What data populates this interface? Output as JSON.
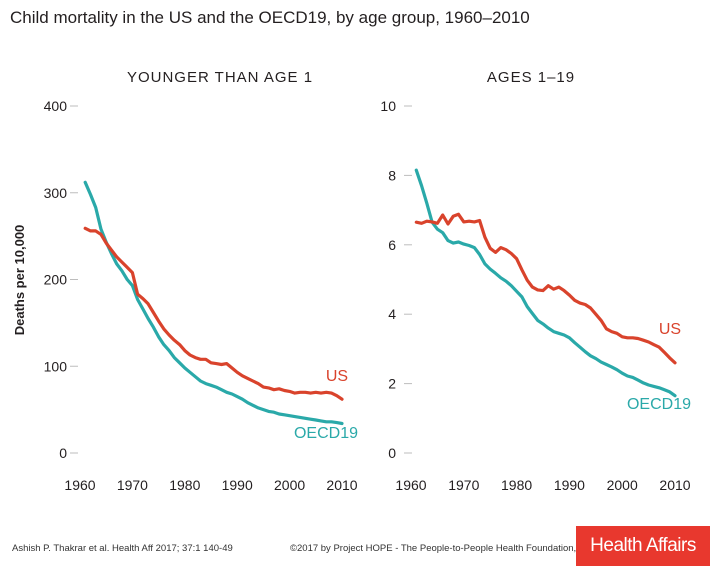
{
  "title": "Child mortality in the US and the OECD19, by age group, 1960–2010",
  "footer": {
    "citation": "Ashish P. Thakrar et al. Health Aff 2017; 37:1 140-49",
    "copyright": "©2017 by Project HOPE - The People-to-People Health Foundation, Inc.",
    "logo_text": "Health Affairs"
  },
  "colors": {
    "us": "#d9432c",
    "oecd19": "#2aa9a9",
    "axis": "#bdbdbd"
  },
  "chart_data": [
    {
      "type": "line",
      "title": "YOUNGER THAN AGE 1",
      "ylabel": "Deaths per 10,000",
      "xlabel": "",
      "xlim": [
        1960,
        2010
      ],
      "ylim": [
        0,
        400
      ],
      "xticks": [
        1960,
        1970,
        1980,
        1990,
        2000,
        2010
      ],
      "yticks": [
        0,
        100,
        200,
        300,
        400
      ],
      "series": [
        {
          "name": "US",
          "x": [
            1961,
            1962,
            1963,
            1964,
            1965,
            1966,
            1967,
            1968,
            1969,
            1970,
            1971,
            1972,
            1973,
            1974,
            1975,
            1976,
            1977,
            1978,
            1979,
            1980,
            1981,
            1982,
            1983,
            1984,
            1985,
            1986,
            1987,
            1988,
            1989,
            1990,
            1991,
            1992,
            1993,
            1994,
            1995,
            1996,
            1997,
            1998,
            1999,
            2000,
            2001,
            2002,
            2003,
            2004,
            2005,
            2006,
            2007,
            2008,
            2009,
            2010
          ],
          "y": [
            259,
            256,
            256,
            252,
            242,
            234,
            226,
            220,
            214,
            208,
            183,
            178,
            172,
            162,
            152,
            143,
            136,
            130,
            125,
            118,
            113,
            110,
            108,
            108,
            104,
            103,
            102,
            103,
            98,
            93,
            89,
            86,
            83,
            80,
            76,
            75,
            73,
            74,
            72,
            71,
            69,
            70,
            70,
            69,
            70,
            69,
            70,
            69,
            66,
            62
          ]
        },
        {
          "name": "OECD19",
          "x": [
            1961,
            1962,
            1963,
            1964,
            1965,
            1966,
            1967,
            1968,
            1969,
            1970,
            1971,
            1972,
            1973,
            1974,
            1975,
            1976,
            1977,
            1978,
            1979,
            1980,
            1981,
            1982,
            1983,
            1984,
            1985,
            1986,
            1987,
            1988,
            1989,
            1990,
            1991,
            1992,
            1993,
            1994,
            1995,
            1996,
            1997,
            1998,
            1999,
            2000,
            2001,
            2002,
            2003,
            2004,
            2005,
            2006,
            2007,
            2008,
            2009,
            2010
          ],
          "y": [
            312,
            298,
            283,
            258,
            243,
            230,
            218,
            210,
            200,
            193,
            177,
            166,
            155,
            145,
            134,
            125,
            118,
            110,
            104,
            98,
            93,
            88,
            83,
            80,
            78,
            76,
            73,
            70,
            68,
            65,
            62,
            58,
            55,
            52,
            50,
            48,
            47,
            45,
            44,
            43,
            42,
            41,
            40,
            39,
            38,
            37,
            36,
            36,
            35,
            34
          ]
        }
      ]
    },
    {
      "type": "line",
      "title": "AGES 1–19",
      "ylabel": "",
      "xlabel": "",
      "xlim": [
        1960,
        2010
      ],
      "ylim": [
        0,
        10
      ],
      "xticks": [
        1960,
        1970,
        1980,
        1990,
        2000,
        2010
      ],
      "yticks": [
        0,
        2,
        4,
        6,
        8,
        10
      ],
      "series": [
        {
          "name": "US",
          "x": [
            1961,
            1962,
            1963,
            1964,
            1965,
            1966,
            1967,
            1968,
            1969,
            1970,
            1971,
            1972,
            1973,
            1974,
            1975,
            1976,
            1977,
            1978,
            1979,
            1980,
            1981,
            1982,
            1983,
            1984,
            1985,
            1986,
            1987,
            1988,
            1989,
            1990,
            1991,
            1992,
            1993,
            1994,
            1995,
            1996,
            1997,
            1998,
            1999,
            2000,
            2001,
            2002,
            2003,
            2004,
            2005,
            2006,
            2007,
            2008,
            2009,
            2010
          ],
          "y": [
            6.65,
            6.62,
            6.68,
            6.66,
            6.62,
            6.86,
            6.6,
            6.82,
            6.88,
            6.66,
            6.68,
            6.66,
            6.7,
            6.22,
            5.9,
            5.78,
            5.92,
            5.86,
            5.75,
            5.6,
            5.28,
            4.98,
            4.78,
            4.7,
            4.68,
            4.82,
            4.72,
            4.78,
            4.68,
            4.55,
            4.4,
            4.32,
            4.28,
            4.18,
            4.0,
            3.82,
            3.58,
            3.5,
            3.45,
            3.35,
            3.32,
            3.32,
            3.3,
            3.25,
            3.2,
            3.12,
            3.05,
            2.9,
            2.74,
            2.6
          ]
        },
        {
          "name": "OECD19",
          "x": [
            1961,
            1962,
            1963,
            1964,
            1965,
            1966,
            1967,
            1968,
            1969,
            1970,
            1971,
            1972,
            1973,
            1974,
            1975,
            1976,
            1977,
            1978,
            1979,
            1980,
            1981,
            1982,
            1983,
            1984,
            1985,
            1986,
            1987,
            1988,
            1989,
            1990,
            1991,
            1992,
            1993,
            1994,
            1995,
            1996,
            1997,
            1998,
            1999,
            2000,
            2001,
            2002,
            2003,
            2004,
            2005,
            2006,
            2007,
            2008,
            2009,
            2010
          ],
          "y": [
            8.15,
            7.7,
            7.2,
            6.65,
            6.45,
            6.35,
            6.12,
            6.05,
            6.08,
            6.02,
            5.98,
            5.92,
            5.72,
            5.45,
            5.3,
            5.18,
            5.05,
            4.95,
            4.82,
            4.66,
            4.5,
            4.22,
            4.02,
            3.82,
            3.72,
            3.6,
            3.5,
            3.45,
            3.4,
            3.32,
            3.18,
            3.05,
            2.92,
            2.8,
            2.72,
            2.62,
            2.55,
            2.48,
            2.4,
            2.3,
            2.22,
            2.18,
            2.1,
            2.02,
            1.96,
            1.92,
            1.88,
            1.82,
            1.76,
            1.65
          ]
        }
      ]
    }
  ]
}
